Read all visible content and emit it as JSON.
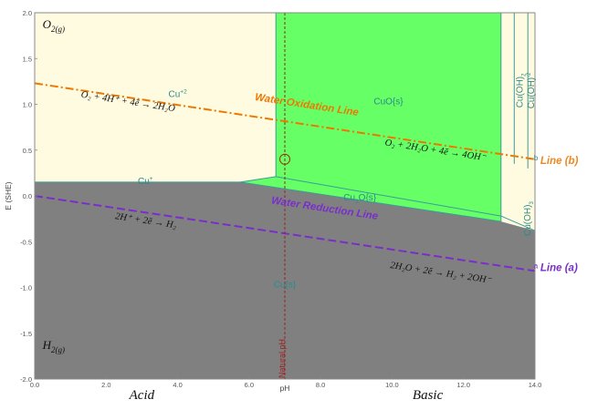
{
  "chart_data": {
    "type": "pourbaix",
    "xlabel": "pH",
    "ylabel": "E (SHE)",
    "xlim": [
      0,
      14
    ],
    "ylim": [
      -2,
      2
    ],
    "x_ticks": [
      "0.0",
      "2.0",
      "4.0",
      "6.0",
      "8.0",
      "10.0",
      "12.0",
      "14.0"
    ],
    "y_ticks": [
      "2.0",
      "1.5",
      "1.0",
      "0.5",
      "0.0",
      "-0.5",
      "-1.0",
      "-1.5",
      "-2.0"
    ],
    "colors": {
      "pale_region": "#fffbe0",
      "cuo_region": "#66ff66",
      "cu_region": "#808080",
      "boundary": "#3b9b9b",
      "oxidation_line": "#ee7700",
      "reduction_line": "#7a2ec9",
      "natural_ph": "#992222"
    },
    "regions": [
      {
        "label": "Cu",
        "sup": "+2",
        "x": 4.0,
        "y": 1.08
      },
      {
        "label": "CuO{s}",
        "x": 9.9,
        "y": 1.0
      },
      {
        "label": "Cu",
        "sup": "+",
        "x": 3.1,
        "y": 0.15
      },
      {
        "label": "Cu",
        "sub": "2",
        "after": "O{s}",
        "x": 9.1,
        "y": -0.03
      },
      {
        "label": "Cu{s}",
        "x": 7.0,
        "y": -0.97
      },
      {
        "label": "Cu(OH)",
        "sub": "2",
        "x": 13.65,
        "y": 1.0,
        "rotate": true
      },
      {
        "label": "Cu(OH)",
        "sup": "-2",
        "x": 13.95,
        "y": 1.0,
        "rotate": true
      },
      {
        "label": "Cu(OH)",
        "sub": "3",
        "x": 13.8,
        "y": -0.25,
        "rotate": true
      }
    ],
    "boundaries": {
      "cu2_cuo": [
        [
          6.75,
          2.0
        ],
        [
          6.75,
          0.21
        ]
      ],
      "cuo_cu2o_upper": [
        [
          5.75,
          0.15
        ],
        [
          6.75,
          0.21
        ],
        [
          13.05,
          -0.22
        ]
      ],
      "cu2o_cu_lower": [
        [
          5.75,
          0.15
        ],
        [
          13.05,
          -0.28
        ]
      ],
      "cu_plus_cu": [
        [
          0,
          0.15
        ],
        [
          5.75,
          0.15
        ]
      ],
      "cuo_right": [
        [
          13.05,
          2.0
        ],
        [
          13.05,
          -0.28
        ]
      ],
      "cuoh3_cuo": [
        [
          13.05,
          -0.22
        ],
        [
          14.0,
          -0.38
        ]
      ],
      "cuoh2_cuoh4_a": [
        [
          13.42,
          2.0
        ],
        [
          13.42,
          0.35
        ]
      ],
      "cuoh2_cuoh4_b": [
        [
          13.8,
          2.0
        ],
        [
          13.8,
          0.3
        ]
      ]
    },
    "water_oxidation": {
      "name": "Water Oxidation Line",
      "x": [
        0,
        14
      ],
      "y": [
        1.23,
        0.4
      ],
      "label_end": "Line (b)",
      "marker": "b"
    },
    "water_reduction": {
      "name": "Water Reduction Line",
      "x": [
        0,
        14
      ],
      "y": [
        0.0,
        -0.82
      ],
      "label_end": "Line (a)",
      "marker": "a"
    },
    "natural_ph": {
      "x": 7.0,
      "label": "Natural pH",
      "circle_y": 0.4
    },
    "phase_labels": {
      "top": "O",
      "top_sub": "2(g)",
      "bottom": "H",
      "bottom_sub": "2(g)"
    },
    "equations": {
      "acid_oxidation": "O₂ + 4H⁺ + 4ē → 2H₂O",
      "basic_oxidation": "O₂ + 2H₂O + 4ē → 4OH⁻",
      "acid_reduction": "2H⁺ + 2ē → H₂",
      "basic_reduction": "2H₂O + 2ē → H₂ + 2OH⁻"
    },
    "bottom_labels": {
      "acid": "Acid",
      "basic": "Basic"
    }
  }
}
